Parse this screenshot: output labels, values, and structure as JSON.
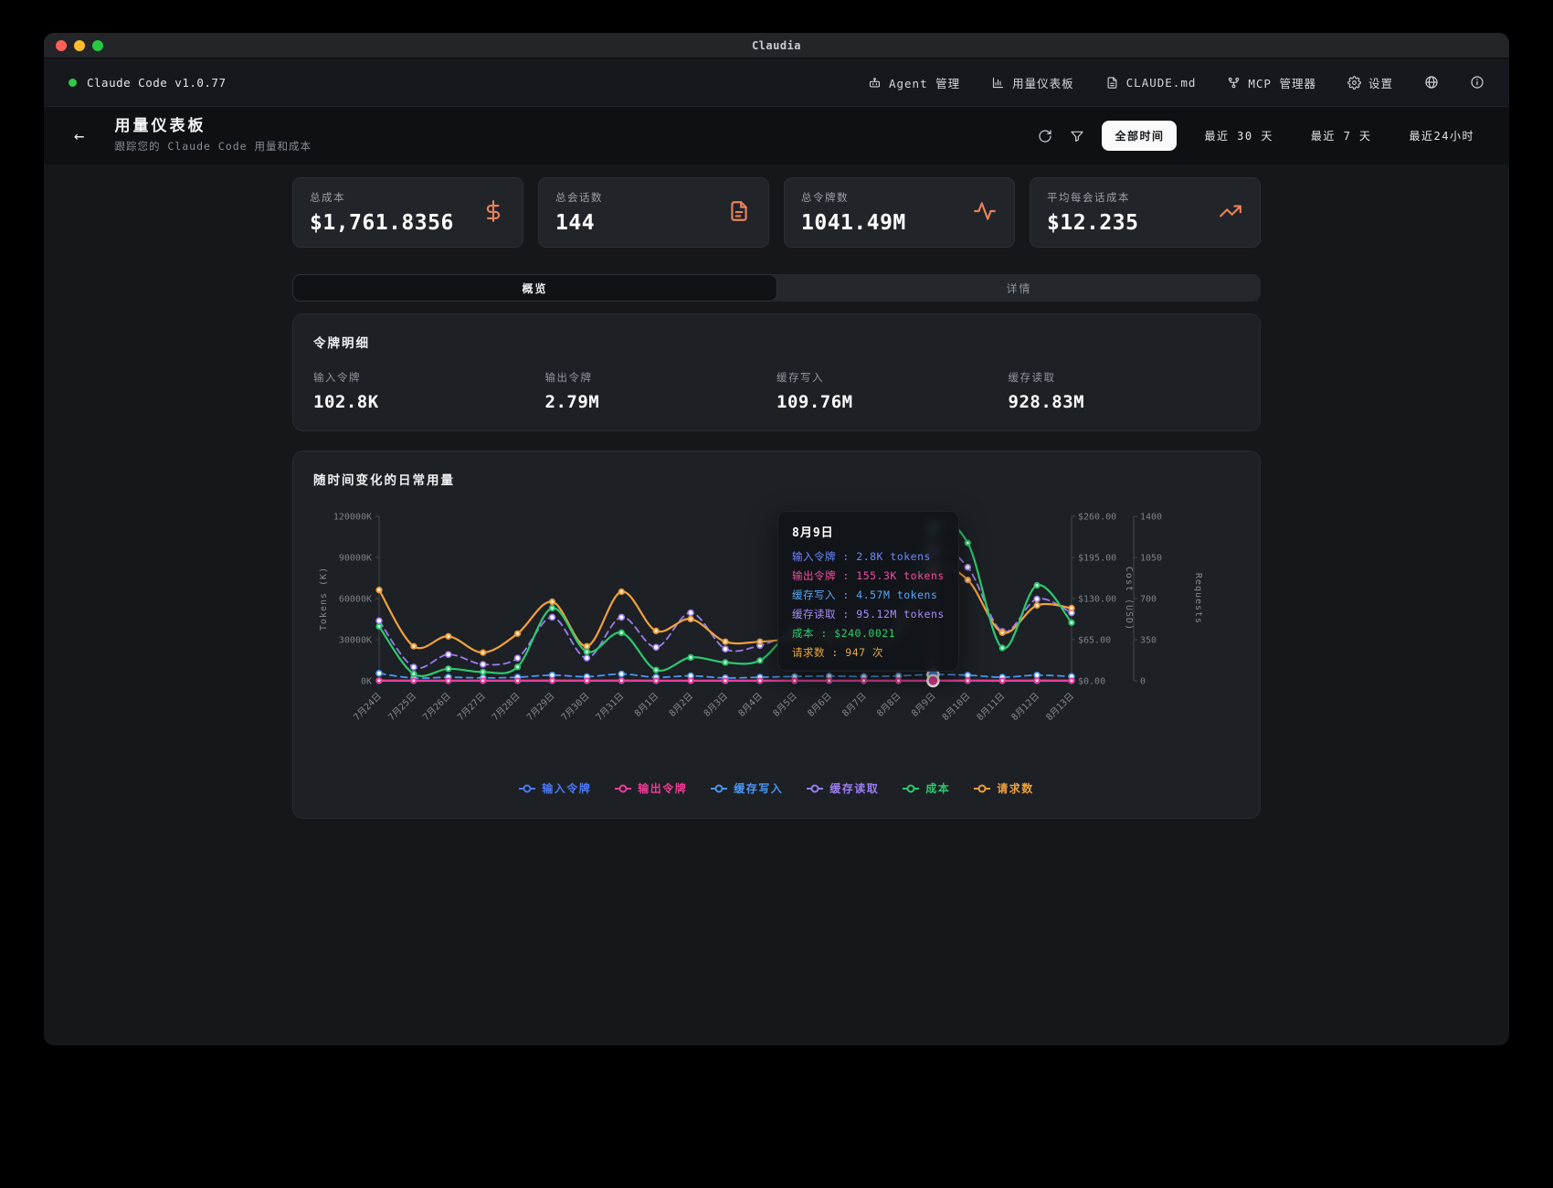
{
  "window": {
    "title": "Claudia"
  },
  "topbar": {
    "version": "Claude Code v1.0.77",
    "nav": [
      {
        "label": "Agent 管理",
        "icon": "robot-icon"
      },
      {
        "label": "用量仪表板",
        "icon": "bar-chart-icon"
      },
      {
        "label": "CLAUDE.md",
        "icon": "file-text-icon"
      },
      {
        "label": "MCP 管理器",
        "icon": "network-icon"
      },
      {
        "label": "设置",
        "icon": "gear-icon"
      }
    ]
  },
  "header": {
    "title": "用量仪表板",
    "subtitle": "跟踪您的 Claude Code 用量和成本",
    "ranges": [
      {
        "label": "全部时间",
        "active": true
      },
      {
        "label": "最近 30 天",
        "active": false
      },
      {
        "label": "最近 7 天",
        "active": false
      },
      {
        "label": "最近24小时",
        "active": false
      }
    ]
  },
  "stats": [
    {
      "label": "总成本",
      "value": "$1,761.8356",
      "icon": "dollar-icon"
    },
    {
      "label": "总会话数",
      "value": "144",
      "icon": "file-text-icon"
    },
    {
      "label": "总令牌数",
      "value": "1041.49M",
      "icon": "activity-icon"
    },
    {
      "label": "平均每会话成本",
      "value": "$12.235",
      "icon": "trending-up-icon"
    }
  ],
  "tabs": [
    {
      "label": "概览",
      "active": true
    },
    {
      "label": "详情",
      "active": false
    }
  ],
  "tokens": {
    "title": "令牌明细",
    "items": [
      {
        "label": "输入令牌",
        "value": "102.8K"
      },
      {
        "label": "输出令牌",
        "value": "2.79M"
      },
      {
        "label": "缓存写入",
        "value": "109.76M"
      },
      {
        "label": "缓存读取",
        "value": "928.83M"
      }
    ]
  },
  "chart_data": {
    "type": "line",
    "title": "随时间变化的日常用量",
    "categories": [
      "7月24日",
      "7月25日",
      "7月26日",
      "7月27日",
      "7月28日",
      "7月29日",
      "7月30日",
      "7月31日",
      "8月1日",
      "8月2日",
      "8月3日",
      "8月4日",
      "8月5日",
      "8月6日",
      "8月7日",
      "8月8日",
      "8月9日",
      "8月10日",
      "8月11日",
      "8月12日",
      "8月13日"
    ],
    "axes": {
      "tokens": {
        "label": "Tokens (K)",
        "max": 120000,
        "ticks": [
          "120000K",
          "90000K",
          "60000K",
          "30000K",
          "0K"
        ]
      },
      "cost": {
        "label": "Cost (USD)",
        "max": 260,
        "ticks": [
          "$260.00",
          "$195.00",
          "$130.00",
          "$65.00",
          "$0.00"
        ]
      },
      "requests": {
        "label": "Requests",
        "max": 1400,
        "ticks": [
          "1400",
          "1050",
          "700",
          "350",
          "0"
        ]
      }
    },
    "highlight_index": 16,
    "legend_position": "bottom",
    "grid": false,
    "series": [
      {
        "name": "输入令牌",
        "color": "#4c7af5",
        "axis": "tokens",
        "dashed": false,
        "marker": "solid",
        "values": [
          5,
          3,
          3,
          3,
          3,
          4,
          3,
          5,
          3,
          4,
          3,
          3,
          3,
          3,
          3,
          4,
          2.8,
          4,
          3,
          4,
          3
        ]
      },
      {
        "name": "输出令牌",
        "color": "#ee3d96",
        "axis": "tokens",
        "dashed": false,
        "marker": "solid",
        "values": [
          200,
          120,
          150,
          130,
          140,
          180,
          140,
          190,
          150,
          160,
          140,
          140,
          150,
          150,
          150,
          160,
          155.3,
          170,
          140,
          170,
          150
        ]
      },
      {
        "name": "缓存写入",
        "color": "#4b96f3",
        "axis": "tokens",
        "dashed": true,
        "marker": "hollow",
        "values": [
          5500,
          2000,
          2600,
          2100,
          2600,
          4100,
          3000,
          5000,
          2600,
          3600,
          2100,
          2600,
          3100,
          3500,
          3100,
          3600,
          4570,
          4100,
          2600,
          4100,
          3100
        ]
      },
      {
        "name": "缓存读取",
        "color": "#9b7df0",
        "axis": "tokens",
        "dashed": true,
        "marker": "hollow",
        "values": [
          43800,
          10000,
          19200,
          12000,
          16600,
          46400,
          16600,
          46400,
          24500,
          49700,
          23200,
          25800,
          34400,
          36000,
          45000,
          46400,
          95120,
          82900,
          36000,
          59700,
          49700
        ]
      },
      {
        "name": "成本",
        "color": "#2dc96f",
        "axis": "cost",
        "dashed": false,
        "marker": "solid",
        "values": [
          86,
          11,
          19,
          14,
          22,
          115,
          46,
          76,
          17,
          37,
          29,
          32,
          82,
          75,
          50,
          82,
          240,
          218,
          52,
          151,
          92
        ]
      },
      {
        "name": "请求数",
        "color": "#f0a13e",
        "axis": "requests",
        "dashed": false,
        "marker": "solid",
        "values": [
          773,
          294,
          379,
          240,
          402,
          673,
          294,
          758,
          425,
          526,
          333,
          333,
          356,
          356,
          379,
          402,
          947,
          859,
          410,
          642,
          619
        ]
      }
    ]
  },
  "tooltip": {
    "title": "8月9日",
    "rows": [
      {
        "label": "输入令牌",
        "value": "2.8K tokens",
        "color": "#6b8afc"
      },
      {
        "label": "输出令牌",
        "value": "155.3K tokens",
        "color": "#f0509f"
      },
      {
        "label": "缓存写入",
        "value": "4.57M tokens",
        "color": "#5aa7f7"
      },
      {
        "label": "缓存读取",
        "value": "95.12M tokens",
        "color": "#a78df5"
      },
      {
        "label": "成本",
        "value": "$240.0021",
        "color": "#2ecf6f"
      },
      {
        "label": "请求数",
        "value": "947 次",
        "color": "#eaa83e"
      }
    ]
  }
}
